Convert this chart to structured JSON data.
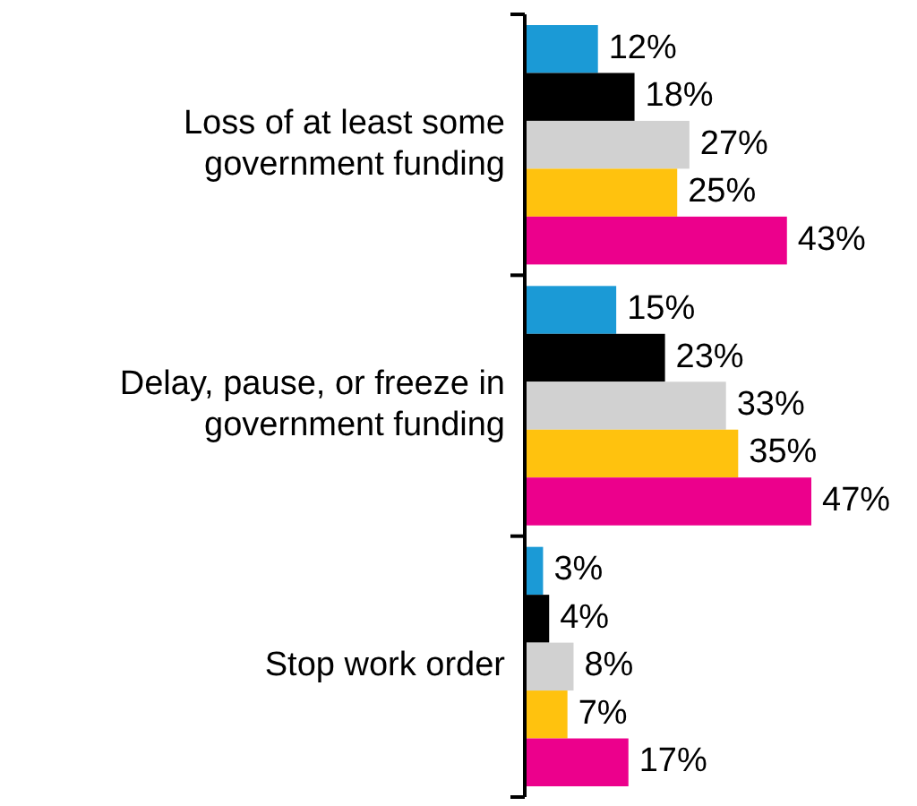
{
  "chart_data": {
    "type": "bar",
    "orientation": "horizontal",
    "categories": [
      "Loss of at least some government funding",
      "Delay, pause, or freeze in government funding",
      "Stop work order"
    ],
    "series": [
      {
        "color": "#1b9ad6",
        "values": [
          12,
          15,
          3
        ],
        "value_labels": [
          "12%",
          "15%",
          "3%"
        ]
      },
      {
        "color": "#000000",
        "values": [
          18,
          23,
          4
        ],
        "value_labels": [
          "18%",
          "23%",
          "4%"
        ]
      },
      {
        "color": "#d1d1d1",
        "values": [
          27,
          33,
          8
        ],
        "value_labels": [
          "27%",
          "33%",
          "8%"
        ]
      },
      {
        "color": "#ffc20e",
        "values": [
          25,
          35,
          7
        ],
        "value_labels": [
          "25%",
          "35%",
          "7%"
        ]
      },
      {
        "color": "#ec008c",
        "values": [
          43,
          47,
          17
        ],
        "value_labels": [
          "43%",
          "47%",
          "17%"
        ]
      }
    ]
  }
}
